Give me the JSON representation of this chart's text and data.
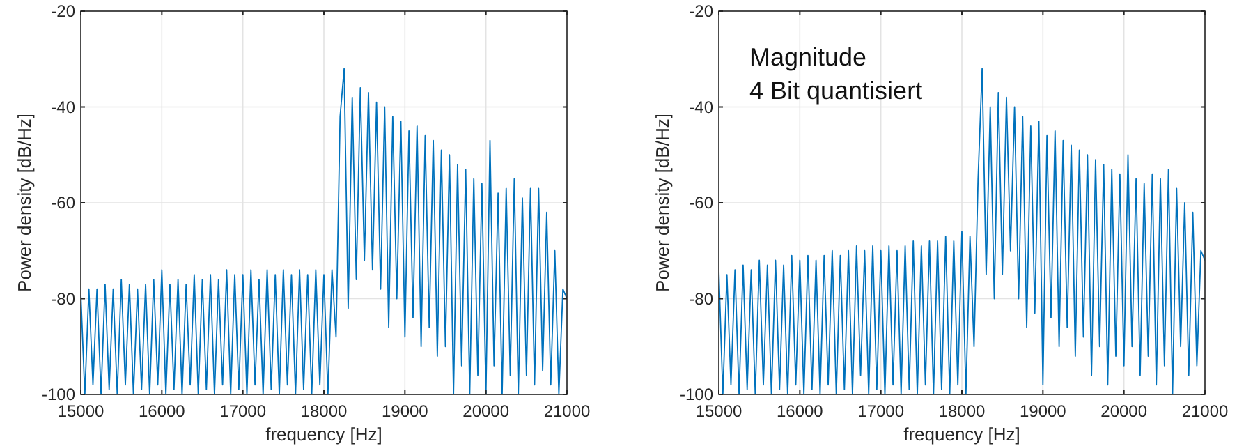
{
  "chart_data": [
    {
      "type": "line",
      "xlabel": "frequency [Hz]",
      "ylabel": "Power density [dB/Hz]",
      "xlim": [
        15000,
        21000
      ],
      "ylim": [
        -100,
        -20
      ],
      "xticks": [
        15000,
        16000,
        17000,
        18000,
        19000,
        20000,
        21000
      ],
      "yticks": [
        -100,
        -80,
        -60,
        -40,
        -20
      ],
      "grid": true,
      "x": [
        15000,
        15050,
        15100,
        15150,
        15200,
        15250,
        15300,
        15350,
        15400,
        15450,
        15500,
        15550,
        15600,
        15650,
        15700,
        15750,
        15800,
        15850,
        15900,
        15950,
        16000,
        16050,
        16100,
        16150,
        16200,
        16250,
        16300,
        16350,
        16400,
        16450,
        16500,
        16550,
        16600,
        16650,
        16700,
        16750,
        16800,
        16850,
        16900,
        16950,
        17000,
        17050,
        17100,
        17150,
        17200,
        17250,
        17300,
        17350,
        17400,
        17450,
        17500,
        17550,
        17600,
        17650,
        17700,
        17750,
        17800,
        17850,
        17900,
        17950,
        18000,
        18050,
        18100,
        18150,
        18200,
        18250,
        18300,
        18350,
        18400,
        18450,
        18500,
        18550,
        18600,
        18650,
        18700,
        18750,
        18800,
        18850,
        18900,
        18950,
        19000,
        19050,
        19100,
        19150,
        19200,
        19250,
        19300,
        19350,
        19400,
        19450,
        19500,
        19550,
        19600,
        19650,
        19700,
        19750,
        19800,
        19850,
        19900,
        19950,
        20000,
        20050,
        20100,
        20150,
        20200,
        20250,
        20300,
        20350,
        20400,
        20450,
        20500,
        20550,
        20600,
        20650,
        20700,
        20750,
        20800,
        20850,
        20900,
        20950,
        21000
      ],
      "series": [
        {
          "color": "#0072bd",
          "values": [
            -79,
            -100,
            -78,
            -98,
            -78,
            -100,
            -77,
            -99,
            -78,
            -100,
            -76,
            -98,
            -77,
            -100,
            -78,
            -99,
            -77,
            -100,
            -76,
            -98,
            -74,
            -100,
            -77,
            -99,
            -76,
            -100,
            -77,
            -98,
            -75,
            -100,
            -76,
            -99,
            -75,
            -100,
            -76,
            -98,
            -74,
            -100,
            -75,
            -99,
            -75,
            -100,
            -74,
            -98,
            -76,
            -100,
            -74,
            -99,
            -75,
            -100,
            -74,
            -98,
            -75,
            -100,
            -74,
            -99,
            -75,
            -100,
            -74,
            -98,
            -75,
            -100,
            -74,
            -88,
            -42,
            -32,
            -82,
            -38,
            -76,
            -36,
            -72,
            -37,
            -74,
            -39,
            -78,
            -40,
            -86,
            -42,
            -80,
            -43,
            -88,
            -45,
            -84,
            -44,
            -90,
            -46,
            -86,
            -47,
            -92,
            -49,
            -90,
            -50,
            -100,
            -52,
            -94,
            -53,
            -100,
            -55,
            -96,
            -56,
            -100,
            -47,
            -94,
            -58,
            -100,
            -57,
            -96,
            -55,
            -100,
            -59,
            -96,
            -57,
            -98,
            -57,
            -95,
            -62,
            -98,
            -70,
            -100,
            -78,
            -80
          ]
        }
      ]
    },
    {
      "type": "line",
      "xlabel": "frequency [Hz]",
      "ylabel": "Power density [dB/Hz]",
      "xlim": [
        15000,
        21000
      ],
      "ylim": [
        -100,
        -20
      ],
      "xticks": [
        15000,
        16000,
        17000,
        18000,
        19000,
        20000,
        21000
      ],
      "yticks": [
        -100,
        -80,
        -60,
        -40,
        -20
      ],
      "grid": true,
      "annotations": [
        "Magnitude",
        "4 Bit quantisiert"
      ],
      "x": [
        15000,
        15050,
        15100,
        15150,
        15200,
        15250,
        15300,
        15350,
        15400,
        15450,
        15500,
        15550,
        15600,
        15650,
        15700,
        15750,
        15800,
        15850,
        15900,
        15950,
        16000,
        16050,
        16100,
        16150,
        16200,
        16250,
        16300,
        16350,
        16400,
        16450,
        16500,
        16550,
        16600,
        16650,
        16700,
        16750,
        16800,
        16850,
        16900,
        16950,
        17000,
        17050,
        17100,
        17150,
        17200,
        17250,
        17300,
        17350,
        17400,
        17450,
        17500,
        17550,
        17600,
        17650,
        17700,
        17750,
        17800,
        17850,
        17900,
        17950,
        18000,
        18050,
        18100,
        18150,
        18200,
        18250,
        18300,
        18350,
        18400,
        18450,
        18500,
        18550,
        18600,
        18650,
        18700,
        18750,
        18800,
        18850,
        18900,
        18950,
        19000,
        19050,
        19100,
        19150,
        19200,
        19250,
        19300,
        19350,
        19400,
        19450,
        19500,
        19550,
        19600,
        19650,
        19700,
        19750,
        19800,
        19850,
        19900,
        19950,
        20000,
        20050,
        20100,
        20150,
        20200,
        20250,
        20300,
        20350,
        20400,
        20450,
        20500,
        20550,
        20600,
        20650,
        20700,
        20750,
        20800,
        20850,
        20900,
        20950,
        21000
      ],
      "series": [
        {
          "color": "#0072bd",
          "values": [
            -74,
            -100,
            -75,
            -98,
            -74,
            -100,
            -73,
            -99,
            -74,
            -100,
            -72,
            -98,
            -73,
            -100,
            -72,
            -99,
            -73,
            -100,
            -71,
            -98,
            -72,
            -100,
            -71,
            -99,
            -72,
            -100,
            -71,
            -98,
            -70,
            -100,
            -71,
            -99,
            -70,
            -100,
            -69,
            -96,
            -70,
            -100,
            -69,
            -99,
            -70,
            -100,
            -69,
            -98,
            -70,
            -100,
            -69,
            -99,
            -68,
            -100,
            -69,
            -98,
            -68,
            -100,
            -68,
            -99,
            -67,
            -100,
            -68,
            -98,
            -66,
            -100,
            -67,
            -90,
            -55,
            -32,
            -75,
            -40,
            -80,
            -37,
            -75,
            -38,
            -70,
            -40,
            -80,
            -42,
            -86,
            -44,
            -83,
            -43,
            -98,
            -46,
            -84,
            -45,
            -90,
            -47,
            -86,
            -48,
            -92,
            -49,
            -88,
            -50,
            -96,
            -51,
            -90,
            -52,
            -98,
            -53,
            -92,
            -54,
            -94,
            -50,
            -90,
            -55,
            -96,
            -56,
            -92,
            -54,
            -98,
            -55,
            -94,
            -53,
            -100,
            -57,
            -90,
            -60,
            -96,
            -62,
            -94,
            -70,
            -72
          ]
        }
      ]
    }
  ]
}
